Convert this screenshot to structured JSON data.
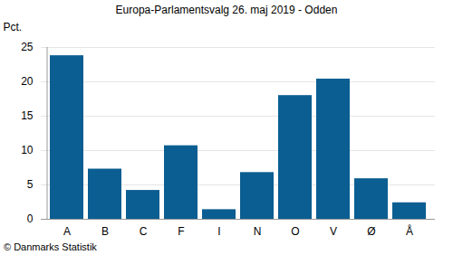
{
  "chart_data": {
    "type": "bar",
    "title": "Europa-Parlamentsvalg 26. maj 2019 - Odden",
    "y_label": "Pct.",
    "caption": "© Danmarks Statistik",
    "categories": [
      "A",
      "B",
      "C",
      "F",
      "I",
      "N",
      "O",
      "V",
      "Ø",
      "Å"
    ],
    "values": [
      23.8,
      7.3,
      4.2,
      10.7,
      1.4,
      6.8,
      18.0,
      20.4,
      5.9,
      2.4
    ],
    "color": "#0b5e91",
    "ylim": [
      0,
      25
    ],
    "yticks": [
      0,
      5,
      10,
      15,
      20,
      25
    ],
    "grid": true
  }
}
